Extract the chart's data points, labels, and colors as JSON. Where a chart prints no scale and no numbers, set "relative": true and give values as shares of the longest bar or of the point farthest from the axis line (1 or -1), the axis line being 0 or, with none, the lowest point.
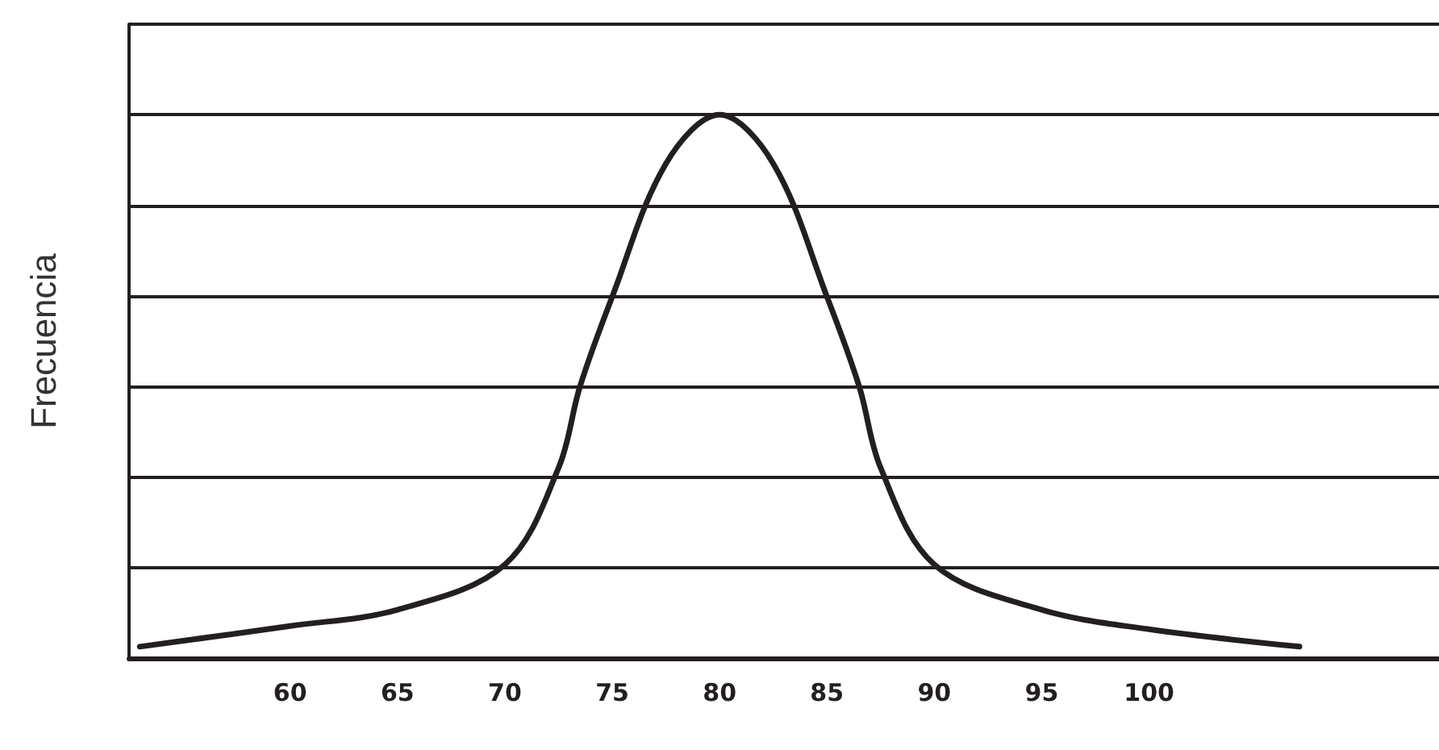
{
  "chart_data": {
    "type": "line",
    "ylabel": "Frecuencia",
    "relative": true,
    "grid": "y",
    "tick_labels": "x",
    "marker": "none",
    "line_style": "solid",
    "xlim": [
      52.5,
      113.5
    ],
    "xticks": [
      60,
      65,
      70,
      75,
      80,
      85,
      90,
      95,
      100
    ],
    "series": [
      {
        "color": "#231f20",
        "x": [
          53,
          60,
          65,
          70,
          72.5,
          73.5,
          75,
          77.5,
          80,
          82.5,
          85,
          86.5,
          87.5,
          90,
          95,
          100,
          107
        ],
        "values": [
          0.021,
          0.059,
          0.089,
          0.172,
          0.35,
          0.5,
          0.665,
          0.91,
          1,
          0.91,
          0.665,
          0.5,
          0.35,
          0.172,
          0.089,
          0.053,
          0.021
        ]
      }
    ]
  }
}
